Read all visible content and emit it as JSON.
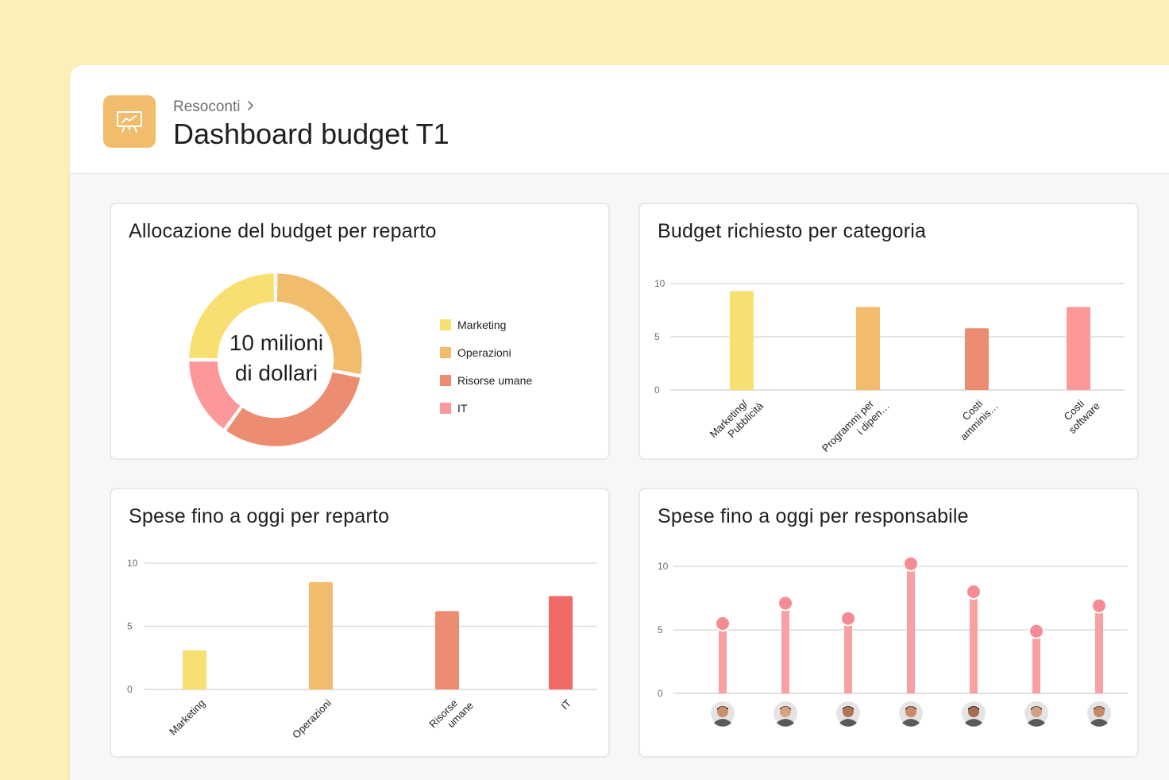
{
  "header": {
    "breadcrumb": "Resoconti",
    "title": "Dashboard budget T1",
    "app_icon": "presentation-chart-icon",
    "accent_color": "#F1BD6C"
  },
  "colors": {
    "marketing": "#F8DF72",
    "operations": "#F1BD6C",
    "hr": "#EC8D71",
    "it": "#FC979A",
    "it_dark": "#F06A6A",
    "lollipop": "#F9A0A3",
    "grid": "#D5D5D5",
    "tick": "#6D6E6F"
  },
  "cards": {
    "allocation": {
      "title": "Allocazione del budget per reparto",
      "center_line1": "10 milioni",
      "center_line2": "di dollari",
      "legend": [
        "Marketing",
        "Operazioni",
        "Risorse umane",
        "IT"
      ]
    },
    "requested": {
      "title": "Budget richiesto per categoria"
    },
    "spent_dept": {
      "title": "Spese fino a oggi per reparto"
    },
    "spent_owner": {
      "title": "Spese fino a oggi per responsabile"
    }
  },
  "chart_data": [
    {
      "type": "pie",
      "categories": [
        "Marketing",
        "Operazioni",
        "Risorse umane",
        "IT"
      ],
      "values": [
        25,
        28,
        32,
        15
      ],
      "title": "Allocazione del budget per reparto"
    },
    {
      "type": "bar",
      "categories": [
        "Marketing/ Pubblicità",
        "Programmi per i dipen…",
        "Costi amminis…",
        "Costi software"
      ],
      "values": [
        9.3,
        7.8,
        5.8,
        7.8
      ],
      "ylim": [
        0,
        10
      ],
      "yticks": [
        0,
        5,
        10
      ],
      "title": "Budget richiesto per categoria",
      "grid": true
    },
    {
      "type": "bar",
      "categories": [
        "Marketing",
        "Operazioni",
        "Risorse umane",
        "IT"
      ],
      "values": [
        3.1,
        8.5,
        6.2,
        7.4
      ],
      "ylim": [
        0,
        10
      ],
      "yticks": [
        0,
        5,
        10
      ],
      "title": "Spese fino a oggi per reparto",
      "grid": true
    },
    {
      "type": "lollipop",
      "categories": [
        "avatar-1",
        "avatar-2",
        "avatar-3",
        "avatar-4",
        "avatar-5",
        "avatar-6",
        "avatar-7"
      ],
      "values": [
        5.5,
        7.1,
        5.9,
        10.2,
        8.0,
        4.9,
        6.9
      ],
      "ylim": [
        0,
        10
      ],
      "yticks": [
        0,
        5,
        10
      ],
      "title": "Spese fino a oggi per responsabile",
      "grid": true
    }
  ]
}
